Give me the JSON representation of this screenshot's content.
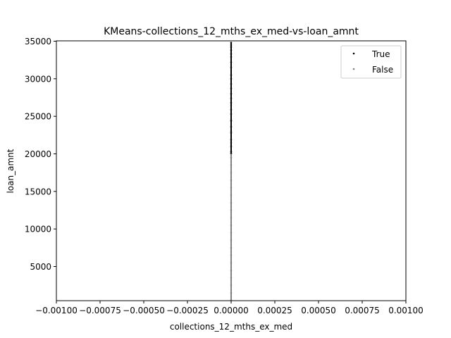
{
  "chart_data": {
    "type": "scatter",
    "title": "KMeans-collections_12_mths_ex_med-vs-loan_amnt",
    "xlabel": "collections_12_mths_ex_med",
    "ylabel": "loan_amnt",
    "xlim": [
      -0.001,
      0.001
    ],
    "ylim": [
      500,
      35000
    ],
    "xticks": [
      "−0.00100",
      "−0.00075",
      "−0.00050",
      "−0.00025",
      "0.00000",
      "0.00025",
      "0.00050",
      "0.00075",
      "0.00100"
    ],
    "yticks": [
      "5000",
      "10000",
      "15000",
      "20000",
      "25000",
      "30000",
      "35000"
    ],
    "legend_position": "top-right",
    "grid": false,
    "series": [
      {
        "name": "True",
        "color": "#000000",
        "x": [
          0,
          0,
          0,
          0,
          0,
          0,
          0,
          0,
          0,
          0,
          0,
          0,
          0,
          0,
          0,
          0,
          0,
          0,
          0,
          0,
          0,
          0,
          0,
          0
        ],
        "y": [
          34800,
          34500,
          34200,
          33800,
          33300,
          32900,
          32200,
          31500,
          30500,
          30000,
          29300,
          28700,
          28000,
          27400,
          26800,
          25900,
          25300,
          24400,
          23600,
          22800,
          21900,
          21000,
          20300,
          20100
        ]
      },
      {
        "name": "False",
        "color": "#808080",
        "x": [
          0,
          0,
          0,
          0,
          0,
          0,
          0,
          0,
          0,
          0,
          0,
          0,
          0,
          0,
          0,
          0,
          0,
          0,
          0,
          0,
          0,
          0,
          0,
          0,
          0
        ],
        "y": [
          500,
          1500,
          2500,
          3500,
          4500,
          5500,
          6500,
          7500,
          8500,
          9500,
          10500,
          11500,
          12500,
          13500,
          14500,
          15500,
          16500,
          17500,
          18500,
          19500,
          20000,
          21500,
          23000,
          24500,
          26500
        ]
      }
    ]
  }
}
